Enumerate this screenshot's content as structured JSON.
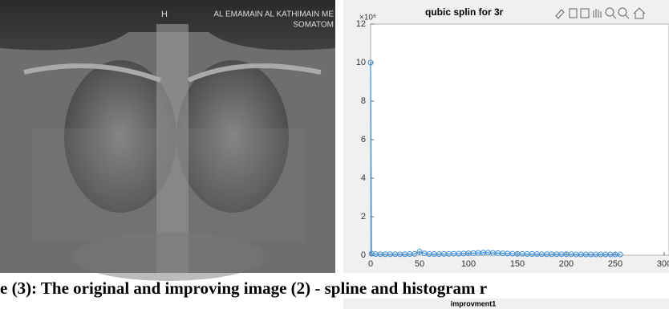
{
  "image": {
    "labels": [
      "H",
      "AL EMAMAIN AL KATHIMAIN ME",
      "SOMATOM"
    ]
  },
  "chart_data": {
    "type": "line",
    "title": "qubic splin for 3r",
    "y_multiplier": "×10⁶",
    "x": [
      0,
      1,
      5,
      10,
      15,
      20,
      25,
      30,
      35,
      40,
      45,
      50,
      55,
      60,
      65,
      70,
      75,
      80,
      85,
      90,
      95,
      100,
      105,
      110,
      115,
      120,
      125,
      130,
      135,
      140,
      145,
      150,
      155,
      160,
      165,
      170,
      175,
      180,
      185,
      190,
      195,
      200,
      205,
      210,
      215,
      220,
      225,
      230,
      235,
      240,
      245,
      250,
      255
    ],
    "values": [
      10,
      0.08,
      0.06,
      0.05,
      0.05,
      0.05,
      0.05,
      0.05,
      0.05,
      0.06,
      0.07,
      0.18,
      0.1,
      0.06,
      0.06,
      0.06,
      0.07,
      0.07,
      0.08,
      0.08,
      0.09,
      0.1,
      0.11,
      0.12,
      0.13,
      0.13,
      0.12,
      0.11,
      0.1,
      0.09,
      0.08,
      0.07,
      0.07,
      0.06,
      0.06,
      0.06,
      0.05,
      0.05,
      0.05,
      0.05,
      0.05,
      0.05,
      0.05,
      0.04,
      0.04,
      0.04,
      0.04,
      0.04,
      0.04,
      0.04,
      0.04,
      0.04,
      0.04
    ],
    "color": "#3b8ed8",
    "xlim": [
      0,
      300
    ],
    "xticks": [
      0,
      50,
      100,
      150,
      200,
      250,
      300
    ],
    "ylim": [
      0,
      12
    ],
    "yticks": [
      0,
      2,
      4,
      6,
      8,
      10,
      12
    ],
    "markers": "circle"
  },
  "caption": "e (3): The original and improving image (2) - spline and histogram r",
  "next_figure": {
    "title": "improvment1"
  }
}
